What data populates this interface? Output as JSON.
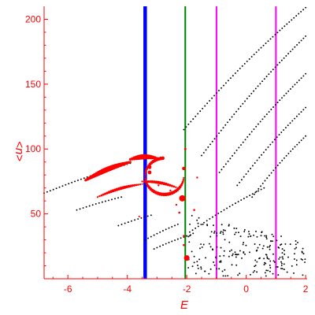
{
  "chart_data": {
    "type": "scatter",
    "xlabel": "E",
    "ylabel": "<n>",
    "xlim": [
      -6.8,
      2.05
    ],
    "ylim": [
      0,
      210
    ],
    "x_ticks": [
      -6,
      -4,
      -2,
      0,
      2
    ],
    "y_ticks": [
      50,
      100,
      150,
      200
    ],
    "grid": false,
    "colors": {
      "axis": "#ff0000",
      "black_points": "#000000",
      "red_points": "#ff0000",
      "blue_line": "#0000ff",
      "green_line": "#008000",
      "magenta_line": "#ff00ff"
    },
    "vertical_lines": [
      {
        "x": -3.4,
        "color": "#0000ff",
        "width": "thick"
      },
      {
        "x": -2.05,
        "color": "#008000",
        "width": "medium"
      },
      {
        "x": -1.0,
        "color": "#ff00ff",
        "width": "medium"
      },
      {
        "x": 1.0,
        "color": "#ff00ff",
        "width": "medium"
      }
    ],
    "black_series": [
      {
        "x_start": -6.8,
        "x_end": -3.9,
        "y_start": 66,
        "y_end": 89
      },
      {
        "x_start": -5.7,
        "x_end": -4.2,
        "y_start": 53,
        "y_end": 63
      },
      {
        "x_start": -4.3,
        "x_end": -3.2,
        "y_start": 41,
        "y_end": 49
      },
      {
        "x_start": -3.4,
        "x_end": -2.3,
        "y_start": 30,
        "y_end": 42
      },
      {
        "x_start": -3.1,
        "x_end": -2.0,
        "y_start": 23,
        "y_end": 33
      },
      {
        "x_start": -2.1,
        "x_end": 2.0,
        "y_start": 115,
        "y_end": 209
      },
      {
        "x_start": -1.5,
        "x_end": 2.0,
        "y_start": 95,
        "y_end": 187
      },
      {
        "x_start": -0.9,
        "x_end": 2.0,
        "y_start": 82,
        "y_end": 158
      },
      {
        "x_start": -0.3,
        "x_end": 2.0,
        "y_start": 72,
        "y_end": 132
      },
      {
        "x_start": 0.2,
        "x_end": 2.0,
        "y_start": 63,
        "y_end": 110
      },
      {
        "x_start": -1.9,
        "x_end": 0.6,
        "y_start": 36,
        "y_end": 70
      }
    ],
    "black_scatter_region": {
      "x_range": [
        -2.0,
        2.0
      ],
      "y_range": [
        2,
        50
      ],
      "count": 220
    },
    "red_series": [
      {
        "x_start": -5.4,
        "x_end": -3.9,
        "y_start": 76,
        "y_end": 90,
        "size": "large"
      },
      {
        "x_start": -3.9,
        "x_end": -3.0,
        "y_start": 92,
        "y_end": 93,
        "size": "large"
      },
      {
        "x_start": -5.0,
        "x_end": -3.5,
        "y_start": 63,
        "y_end": 73,
        "size": "medium"
      },
      {
        "x_start": -3.5,
        "x_end": -2.3,
        "y_start": 75,
        "y_end": 70,
        "size": "medium"
      }
    ],
    "red_arc": {
      "cx": -2.75,
      "cy": 79,
      "rx": 0.65,
      "ry": 14,
      "from_deg": 95,
      "to_deg": 355
    },
    "red_blobs": [
      {
        "x": -3.25,
        "y": 82,
        "r": 2.4
      },
      {
        "x": -3.25,
        "y": 86,
        "r": 2.4
      },
      {
        "x": -2.15,
        "y": 62,
        "r": 4.0
      },
      {
        "x": -2.0,
        "y": 16,
        "r": 3.5
      },
      {
        "x": -2.1,
        "y": 85,
        "r": 2.2
      },
      {
        "x": -2.05,
        "y": 100,
        "r": 1.5
      },
      {
        "x": -1.65,
        "y": 78,
        "r": 1.2
      },
      {
        "x": -1.75,
        "y": 53,
        "r": 1.3
      },
      {
        "x": -2.25,
        "y": 51,
        "r": 1.3
      },
      {
        "x": -2.1,
        "y": 33,
        "r": 1.3
      },
      {
        "x": -2.1,
        "y": 26,
        "r": 1.3
      },
      {
        "x": -2.55,
        "y": 68,
        "r": 1.2
      },
      {
        "x": -2.95,
        "y": 72,
        "r": 1.2
      },
      {
        "x": -2.35,
        "y": 57,
        "r": 1.2
      },
      {
        "x": -3.6,
        "y": 48,
        "r": 1.1
      }
    ]
  }
}
